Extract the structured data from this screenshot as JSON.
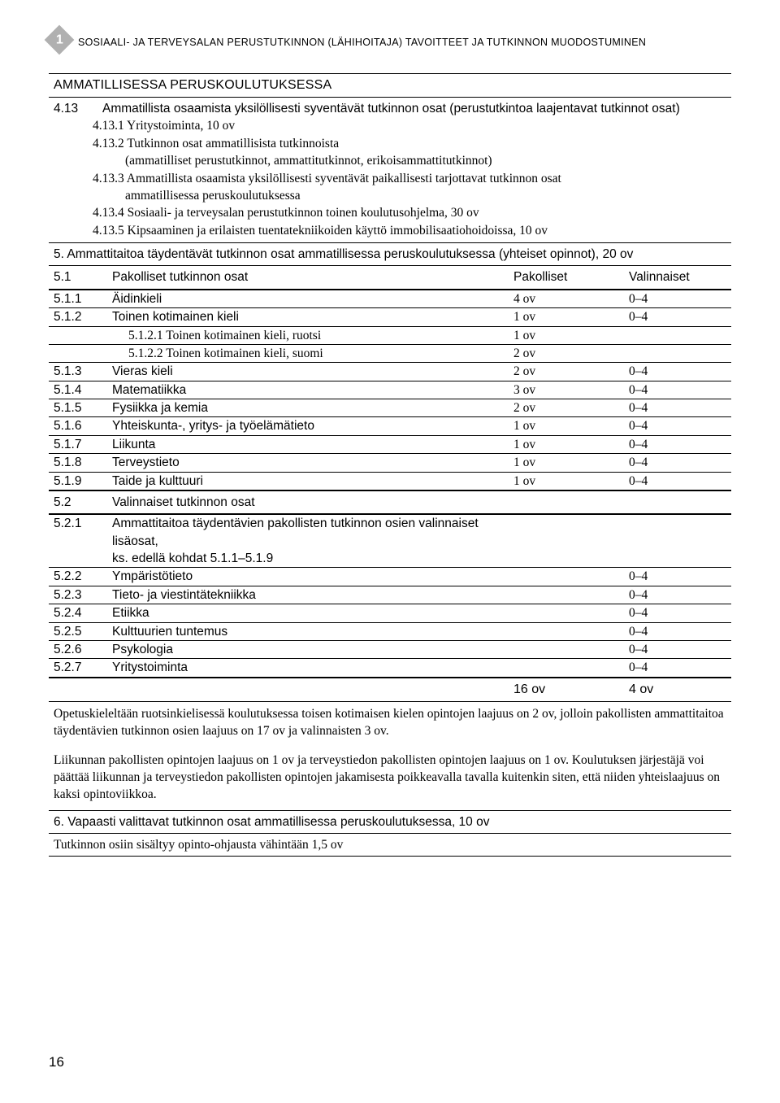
{
  "chapter_number": "1",
  "running_head": "SOSIAALI- JA TERVEYSALAN PERUSTUTKINNON (LÄHIHOITAJA) TAVOITTEET JA TUTKINNON MUODOSTUMINEN",
  "page_number": "16",
  "section_header": "AMMATILLISESSA PERUSKOULUTUKSESSA",
  "s413": {
    "num": "4.13",
    "title": "Ammatillista osaamista yksilöllisesti syventävät tutkinnon osat (perustutkintoa laajentavat tutkinnot osat)",
    "items": [
      "4.13.1 Yritystoiminta, 10 ov",
      "4.13.2 Tutkinnon osat ammatillisista tutkinnoista",
      "(ammatilliset perustutkinnot, ammattitutkinnot, erikoisammattitutkinnot)",
      "4.13.3 Ammatillista osaamista yksilöllisesti syventävät paikallisesti tarjottavat tutkinnon osat",
      "ammatillisessa peruskoulutuksessa",
      "4.13.4 Sosiaali- ja terveysalan perustutkinnon toinen koulutusohjelma, 30 ov",
      "4.13.5 Kipsaaminen ja erilaisten tuentatekniikoiden käyttö immobilisaatiohoidoissa, 10 ov"
    ]
  },
  "s5": "5. Ammattitaitoa täydentävät tutkinnon osat ammatillisessa peruskoulutuksessa (yhteiset opinnot), 20 ov",
  "s51": {
    "num": "5.1",
    "label": "Pakolliset tutkinnon osat",
    "c1": "Pakolliset",
    "c2": "Valinnaiset"
  },
  "rows51": [
    {
      "num": "5.1.1",
      "label": "Äidinkieli",
      "pak": "4 ov",
      "val": "0–4"
    },
    {
      "num": "5.1.2",
      "label": "Toinen kotimainen kieli",
      "pak": "1 ov",
      "val": "0–4"
    },
    {
      "sub": true,
      "label": "5.1.2.1 Toinen kotimainen kieli, ruotsi",
      "pak": "1 ov",
      "val": ""
    },
    {
      "sub": true,
      "label": "5.1.2.2 Toinen kotimainen kieli, suomi",
      "pak": "2 ov",
      "val": ""
    },
    {
      "num": "5.1.3",
      "label": "Vieras kieli",
      "pak": "2 ov",
      "val": "0–4"
    },
    {
      "num": "5.1.4",
      "label": "Matematiikka",
      "pak": "3 ov",
      "val": "0–4"
    },
    {
      "num": "5.1.5",
      "label": "Fysiikka ja kemia",
      "pak": "2 ov",
      "val": "0–4"
    },
    {
      "num": "5.1.6",
      "label": "Yhteiskunta-, yritys- ja työelämätieto",
      "pak": "1 ov",
      "val": "0–4"
    },
    {
      "num": "5.1.7",
      "label": "Liikunta",
      "pak": "1 ov",
      "val": "0–4"
    },
    {
      "num": "5.1.8",
      "label": "Terveystieto",
      "pak": "1 ov",
      "val": "0–4"
    },
    {
      "num": "5.1.9",
      "label": "Taide ja kulttuuri",
      "pak": "1 ov",
      "val": "0–4"
    }
  ],
  "s52": {
    "num": "5.2",
    "label": "Valinnaiset tutkinnon osat"
  },
  "rows52": [
    {
      "num": "5.2.1",
      "label": "Ammattitaitoa täydentävien pakollisten tutkinnon osien valinnaiset lisäosat,",
      "label2": "ks. edellä kohdat 5.1.1–5.1.9",
      "val": ""
    },
    {
      "num": "5.2.2",
      "label": "Ympäristötieto",
      "val": "0–4"
    },
    {
      "num": "5.2.3",
      "label": "Tieto- ja viestintätekniikka",
      "val": "0–4"
    },
    {
      "num": "5.2.4",
      "label": "Etiikka",
      "val": "0–4"
    },
    {
      "num": "5.2.5",
      "label": "Kulttuurien tuntemus",
      "val": "0–4"
    },
    {
      "num": "5.2.6",
      "label": "Psykologia",
      "val": "0–4"
    },
    {
      "num": "5.2.7",
      "label": "Yritystoiminta",
      "val": "0–4"
    }
  ],
  "totals": {
    "pak": "16 ov",
    "val": "4 ov"
  },
  "prose1": "Opetuskieleltään ruotsinkielisessä koulutuksessa toisen kotimaisen kielen opintojen laajuus on 2 ov, jolloin pakollisten ammattitaitoa täydentävien tutkinnon osien laajuus on 17 ov ja valinnaisten 3 ov.",
  "prose2": "Liikunnan pakollisten opintojen laajuus on 1 ov ja terveystiedon pakollisten opintojen laajuus on 1 ov. Koulutuksen järjestäjä voi päättää liikunnan ja terveystiedon pakollisten opintojen jakamisesta poikkeavalla tavalla kuitenkin siten, että niiden yhteislaajuus on kaksi opintoviikkoa.",
  "s6": "6.  Vapaasti valittavat tutkinnon osat ammatillisessa peruskoulutuksessa, 10 ov",
  "s7": "Tutkinnon osiin sisältyy opinto-ohjausta vähintään 1,5 ov"
}
